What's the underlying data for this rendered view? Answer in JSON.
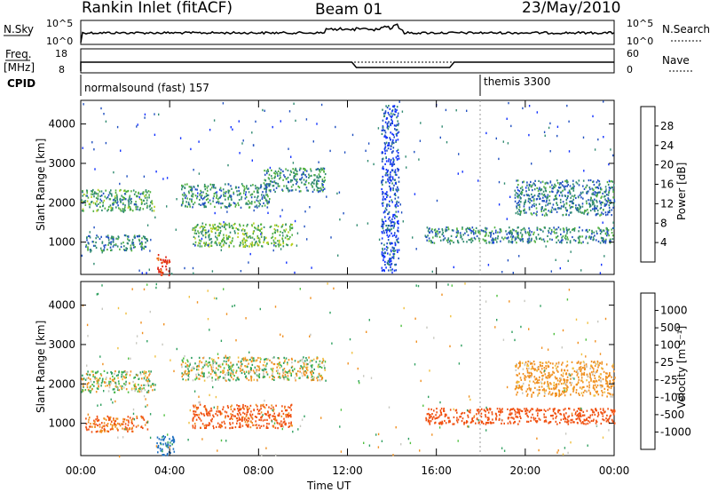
{
  "header": {
    "station": "Rankin Inlet (fitACF)",
    "beam": "Beam 01",
    "date": "23/May/2010"
  },
  "top_panels": {
    "nsky_label": "N.Sky",
    "nsky_ticks": [
      "10^5",
      "10^0"
    ],
    "nsearch_label": "N.Search",
    "nsearch_ticks": [
      "10^5",
      "10^0"
    ],
    "freq_label": "Freq.",
    "freq_unit": "[MHz]",
    "freq_ticks": [
      "18",
      "8"
    ],
    "nave_label": "Nave",
    "nave_ticks": [
      "60",
      "0"
    ],
    "cpid_label": "CPID",
    "cpid_entries": [
      {
        "name": "normalsound (fast) 157",
        "start_hour": 0
      },
      {
        "name": "themis 3300",
        "start_hour": 18
      }
    ]
  },
  "chart_data": [
    {
      "type": "heatmap",
      "quantity": "Power",
      "ylabel": "Slant Range [km]",
      "yticks": [
        1000,
        2000,
        3000,
        4000
      ],
      "ylim": [
        180,
        4600
      ],
      "xlim_hours": [
        0,
        24
      ],
      "colorbar_label": "Power [dB]",
      "colorbar_ticks": [
        "4",
        "8",
        "12",
        "16",
        "20",
        "24",
        "28"
      ],
      "colorbar_colors": [
        "#1030ff",
        "#2050c0",
        "#308a70",
        "#50b040",
        "#b8d020",
        "#f0b020",
        "#f07018",
        "#e02010"
      ],
      "echo_regions": [
        {
          "t": [
            0.0,
            3.3
          ],
          "r": [
            1800,
            2350
          ],
          "level": 12
        },
        {
          "t": [
            0.2,
            3.0
          ],
          "r": [
            800,
            1200
          ],
          "level": 10
        },
        {
          "t": [
            3.4,
            4.0
          ],
          "r": [
            180,
            700
          ],
          "level": 30
        },
        {
          "t": [
            4.5,
            8.5
          ],
          "r": [
            1900,
            2500
          ],
          "level": 10
        },
        {
          "t": [
            8.2,
            11.0
          ],
          "r": [
            2300,
            2900
          ],
          "level": 10
        },
        {
          "t": [
            5.0,
            9.5
          ],
          "r": [
            900,
            1500
          ],
          "level": 14
        },
        {
          "t": [
            13.5,
            14.3
          ],
          "r": [
            300,
            4500
          ],
          "level": 5
        },
        {
          "t": [
            15.5,
            24.0
          ],
          "r": [
            1000,
            1400
          ],
          "level": 10
        },
        {
          "t": [
            19.5,
            24.0
          ],
          "r": [
            1700,
            2600
          ],
          "level": 9
        }
      ]
    },
    {
      "type": "heatmap",
      "quantity": "Velocity",
      "xlabel": "Time UT",
      "ylabel": "Slant Range [km]",
      "yticks": [
        1000,
        2000,
        3000,
        4000
      ],
      "ylim": [
        180,
        4600
      ],
      "xlim_hours": [
        0,
        24
      ],
      "xticks": [
        "00:00",
        "04:00",
        "08:00",
        "12:00",
        "16:00",
        "20:00",
        "00:00"
      ],
      "colorbar_label": "Velocity [m s⁻¹]",
      "colorbar_ticks": [
        "1000",
        "500",
        "100",
        "25",
        "-25",
        "-100",
        "-500",
        "-1000"
      ],
      "colorbar_colors": [
        "#1030c0",
        "#2070c0",
        "#30a060",
        "#50c040",
        "#c8c8c0",
        "#f0c040",
        "#f09020",
        "#f05010",
        "#e01010"
      ],
      "echo_regions": [
        {
          "t": [
            0.0,
            3.3
          ],
          "r": [
            1800,
            2350
          ],
          "value": 0
        },
        {
          "t": [
            0.2,
            3.0
          ],
          "r": [
            800,
            1200
          ],
          "value": -300
        },
        {
          "t": [
            3.4,
            4.2
          ],
          "r": [
            180,
            700
          ],
          "value": 400
        },
        {
          "t": [
            4.5,
            11.0
          ],
          "r": [
            2100,
            2700
          ],
          "value": 0
        },
        {
          "t": [
            5.0,
            9.5
          ],
          "r": [
            900,
            1500
          ],
          "value": -400
        },
        {
          "t": [
            15.5,
            24.0
          ],
          "r": [
            1000,
            1400
          ],
          "value": -500
        },
        {
          "t": [
            19.5,
            24.0
          ],
          "r": [
            1700,
            2600
          ],
          "value": -150
        }
      ]
    }
  ]
}
